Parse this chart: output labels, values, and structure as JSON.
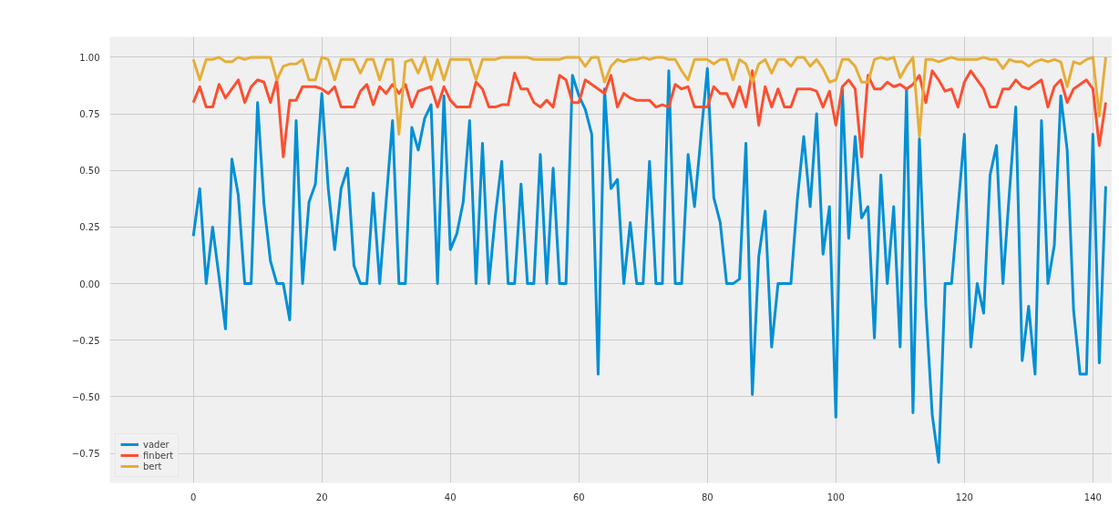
{
  "chart_data": {
    "type": "line",
    "x": [
      0,
      1,
      2,
      3,
      4,
      5,
      6,
      7,
      8,
      9,
      10,
      11,
      12,
      13,
      14,
      15,
      16,
      17,
      18,
      19,
      20,
      21,
      22,
      23,
      24,
      25,
      26,
      27,
      28,
      29,
      30,
      31,
      32,
      33,
      34,
      35,
      36,
      37,
      38,
      39,
      40,
      41,
      42,
      43,
      44,
      45,
      46,
      47,
      48,
      49,
      50,
      51,
      52,
      53,
      54,
      55,
      56,
      57,
      58,
      59,
      60,
      61,
      62,
      63,
      64,
      65,
      66,
      67,
      68,
      69,
      70,
      71,
      72,
      73,
      74,
      75,
      76,
      77,
      78,
      79,
      80,
      81,
      82,
      83,
      84,
      85,
      86,
      87,
      88,
      89,
      90,
      91,
      92,
      93,
      94,
      95,
      96,
      97,
      98,
      99,
      100,
      101,
      102,
      103,
      104,
      105,
      106,
      107,
      108,
      109,
      110,
      111,
      112,
      113,
      114,
      115,
      116,
      117,
      118,
      119,
      120,
      121,
      122,
      123,
      124,
      125,
      126,
      127,
      128,
      129,
      130,
      131,
      132,
      133,
      134,
      135,
      136,
      137,
      138,
      139,
      140,
      141,
      142
    ],
    "series": [
      {
        "name": "vader",
        "color": "#008fd5",
        "values": [
          0.21,
          0.42,
          0.0,
          0.25,
          0.03,
          -0.2,
          0.55,
          0.39,
          0.0,
          0.0,
          0.8,
          0.35,
          0.1,
          0.0,
          0.0,
          -0.16,
          0.72,
          0.0,
          0.36,
          0.44,
          0.84,
          0.42,
          0.15,
          0.42,
          0.51,
          0.08,
          0.0,
          0.0,
          0.4,
          0.0,
          0.36,
          0.72,
          0.0,
          0.0,
          0.69,
          0.59,
          0.73,
          0.79,
          0.0,
          0.83,
          0.15,
          0.22,
          0.36,
          0.72,
          0.0,
          0.62,
          0.0,
          0.3,
          0.54,
          0.0,
          0.0,
          0.44,
          0.0,
          0.0,
          0.57,
          0.0,
          0.51,
          0.0,
          0.0,
          0.92,
          0.83,
          0.77,
          0.66,
          -0.4,
          0.86,
          0.42,
          0.46,
          0.0,
          0.27,
          0.0,
          0.0,
          0.54,
          0.0,
          0.0,
          0.94,
          0.0,
          0.0,
          0.57,
          0.34,
          0.65,
          0.95,
          0.38,
          0.27,
          0.0,
          0.0,
          0.02,
          0.62,
          -0.49,
          0.12,
          0.32,
          -0.28,
          0.0,
          0.0,
          0.0,
          0.37,
          0.65,
          0.34,
          0.75,
          0.13,
          0.34,
          -0.59,
          0.86,
          0.2,
          0.65,
          0.29,
          0.34,
          -0.24,
          0.48,
          0.0,
          0.34,
          -0.28,
          0.86,
          -0.57,
          0.64,
          -0.1,
          -0.58,
          -0.79,
          0.0,
          0.0,
          0.33,
          0.66,
          -0.28,
          0.0,
          -0.13,
          0.48,
          0.61,
          0.0,
          0.4,
          0.78,
          -0.34,
          -0.1,
          -0.4,
          0.72,
          0.0,
          0.17,
          0.83,
          0.59,
          -0.12,
          -0.4,
          -0.4,
          0.66,
          -0.35,
          0.43
        ]
      },
      {
        "name": "finbert",
        "color": "#fc4f30",
        "values": [
          0.8,
          0.87,
          0.78,
          0.78,
          0.88,
          0.82,
          0.86,
          0.9,
          0.8,
          0.87,
          0.9,
          0.89,
          0.8,
          0.9,
          0.56,
          0.81,
          0.81,
          0.87,
          0.87,
          0.87,
          0.86,
          0.84,
          0.87,
          0.78,
          0.78,
          0.78,
          0.85,
          0.88,
          0.79,
          0.87,
          0.84,
          0.88,
          0.84,
          0.88,
          0.78,
          0.85,
          0.86,
          0.87,
          0.78,
          0.87,
          0.81,
          0.78,
          0.78,
          0.78,
          0.89,
          0.86,
          0.78,
          0.78,
          0.79,
          0.79,
          0.93,
          0.86,
          0.86,
          0.8,
          0.78,
          0.81,
          0.78,
          0.92,
          0.9,
          0.8,
          0.8,
          0.9,
          0.88,
          0.86,
          0.84,
          0.92,
          0.78,
          0.84,
          0.82,
          0.81,
          0.81,
          0.81,
          0.78,
          0.79,
          0.78,
          0.88,
          0.86,
          0.87,
          0.78,
          0.78,
          0.78,
          0.87,
          0.84,
          0.84,
          0.78,
          0.87,
          0.78,
          0.94,
          0.7,
          0.87,
          0.78,
          0.86,
          0.78,
          0.78,
          0.86,
          0.86,
          0.86,
          0.85,
          0.78,
          0.85,
          0.7,
          0.87,
          0.9,
          0.86,
          0.56,
          0.92,
          0.86,
          0.86,
          0.89,
          0.87,
          0.88,
          0.86,
          0.88,
          0.92,
          0.8,
          0.94,
          0.9,
          0.85,
          0.86,
          0.78,
          0.89,
          0.94,
          0.9,
          0.86,
          0.78,
          0.78,
          0.86,
          0.86,
          0.9,
          0.87,
          0.86,
          0.88,
          0.9,
          0.78,
          0.87,
          0.9,
          0.8,
          0.86,
          0.88,
          0.9,
          0.86,
          0.61,
          0.8
        ]
      },
      {
        "name": "bert",
        "color": "#e5ae38",
        "values": [
          0.99,
          0.9,
          0.99,
          0.99,
          1.0,
          0.98,
          0.98,
          1.0,
          0.99,
          1.0,
          1.0,
          1.0,
          1.0,
          0.9,
          0.96,
          0.97,
          0.97,
          0.99,
          0.9,
          0.9,
          1.0,
          0.99,
          0.9,
          0.99,
          0.99,
          0.99,
          0.93,
          0.99,
          0.99,
          0.9,
          0.99,
          0.99,
          0.66,
          0.98,
          0.99,
          0.93,
          1.0,
          0.9,
          0.99,
          0.9,
          0.99,
          0.99,
          0.99,
          0.99,
          0.9,
          0.99,
          0.99,
          0.99,
          1.0,
          1.0,
          1.0,
          1.0,
          1.0,
          0.99,
          0.99,
          0.99,
          0.99,
          0.99,
          1.0,
          1.0,
          1.0,
          0.96,
          1.0,
          1.0,
          0.89,
          0.96,
          0.99,
          0.98,
          0.99,
          0.99,
          1.0,
          0.99,
          1.0,
          1.0,
          0.99,
          0.99,
          0.94,
          0.9,
          0.99,
          0.99,
          0.99,
          0.97,
          0.99,
          0.99,
          0.9,
          0.99,
          0.97,
          0.89,
          0.97,
          0.99,
          0.93,
          0.99,
          0.99,
          0.96,
          1.0,
          1.0,
          0.96,
          0.99,
          0.95,
          0.89,
          0.9,
          0.99,
          0.99,
          0.96,
          0.89,
          0.89,
          0.99,
          1.0,
          0.99,
          1.0,
          0.91,
          0.96,
          1.0,
          0.65,
          0.99,
          0.99,
          0.98,
          0.99,
          1.0,
          0.99,
          0.99,
          0.99,
          0.99,
          1.0,
          0.99,
          0.99,
          0.95,
          0.99,
          0.98,
          0.98,
          0.96,
          0.98,
          0.99,
          0.98,
          0.99,
          0.98,
          0.87,
          0.98,
          0.97,
          0.99,
          1.0,
          0.74,
          1.0
        ]
      }
    ],
    "xlim": [
      -13,
      143
    ],
    "ylim": [
      -0.88,
      1.09
    ],
    "xticks": [
      0,
      20,
      40,
      60,
      80,
      100,
      120,
      140
    ],
    "yticks": [
      {
        "value": -0.75,
        "label": "−0.75"
      },
      {
        "value": -0.5,
        "label": "−0.50"
      },
      {
        "value": -0.25,
        "label": "−0.25"
      },
      {
        "value": 0,
        "label": "0.00"
      },
      {
        "value": 0.25,
        "label": "0.25"
      },
      {
        "value": 0.5,
        "label": "0.50"
      },
      {
        "value": 0.75,
        "label": "0.75"
      },
      {
        "value": 1.0,
        "label": "1.00"
      }
    ],
    "grid": true,
    "legend": "bottom left",
    "line_style": "solid"
  }
}
